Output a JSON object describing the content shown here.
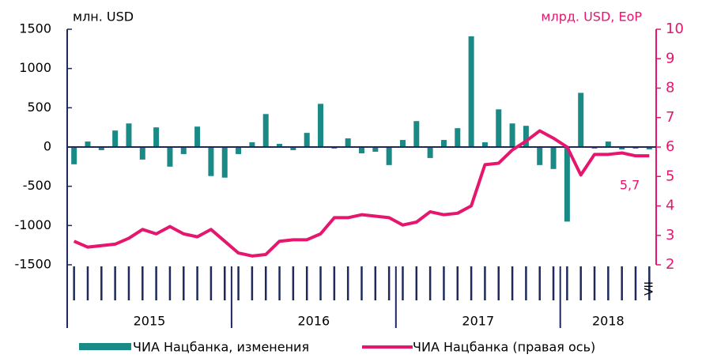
{
  "chart_data": {
    "type": "bar_line",
    "y_label": "млн. USD",
    "y2_label": "млрд. USD, EoP",
    "categories": [
      null,
      null,
      null,
      null,
      null,
      null,
      null,
      null,
      null,
      null,
      null,
      null,
      null,
      null,
      null,
      null,
      null,
      null,
      null,
      null,
      null,
      null,
      null,
      null,
      null,
      null,
      null,
      null,
      null,
      null,
      null,
      null,
      null,
      null,
      null,
      null,
      null,
      null,
      null,
      null,
      null,
      null,
      "VII"
    ],
    "year_labels": [
      "2015",
      "2016",
      "2017",
      "2018"
    ],
    "series": [
      {
        "name": "ЧИА Нацбанка, изменения",
        "color": "#1a8a86",
        "type": "bar",
        "values": [
          -220,
          70,
          -40,
          210,
          300,
          -160,
          250,
          -250,
          -90,
          260,
          -370,
          -390,
          -90,
          60,
          420,
          40,
          -40,
          180,
          550,
          -20,
          110,
          -80,
          -60,
          -230,
          90,
          330,
          -140,
          90,
          240,
          1410,
          60,
          480,
          300,
          270,
          -230,
          -280,
          -950,
          690,
          -20,
          70,
          -30,
          -20,
          -30
        ]
      },
      {
        "name": "ЧИА Нацбанка (правая ось)",
        "color": "#e6166e",
        "type": "line",
        "axis": "y2",
        "values": [
          2.8,
          2.6,
          2.65,
          2.7,
          2.9,
          3.2,
          3.05,
          3.3,
          3.05,
          2.95,
          3.2,
          2.8,
          2.4,
          2.3,
          2.35,
          2.8,
          2.85,
          2.85,
          3.05,
          3.6,
          3.6,
          3.7,
          3.65,
          3.6,
          3.35,
          3.45,
          3.8,
          3.7,
          3.75,
          4.0,
          5.4,
          5.45,
          5.9,
          6.2,
          6.55,
          6.3,
          6.0,
          5.05,
          5.75,
          5.75,
          5.8,
          5.7,
          5.7
        ],
        "value_labels": [
          null,
          null,
          null,
          null,
          null,
          null,
          null,
          null,
          null,
          null,
          null,
          null,
          null,
          null,
          null,
          null,
          null,
          null,
          null,
          null,
          null,
          null,
          null,
          null,
          null,
          null,
          null,
          null,
          null,
          null,
          null,
          null,
          null,
          null,
          null,
          null,
          null,
          null,
          null,
          null,
          null,
          null,
          "5,7"
        ]
      }
    ],
    "ylim": [
      -1500,
      1500
    ],
    "yticks": [
      -1500,
      -1000,
      -500,
      0,
      500,
      1000,
      1500
    ],
    "y2lim": [
      2,
      10
    ],
    "y2ticks": [
      2,
      3,
      4,
      5,
      6,
      7,
      8,
      9,
      10
    ]
  }
}
